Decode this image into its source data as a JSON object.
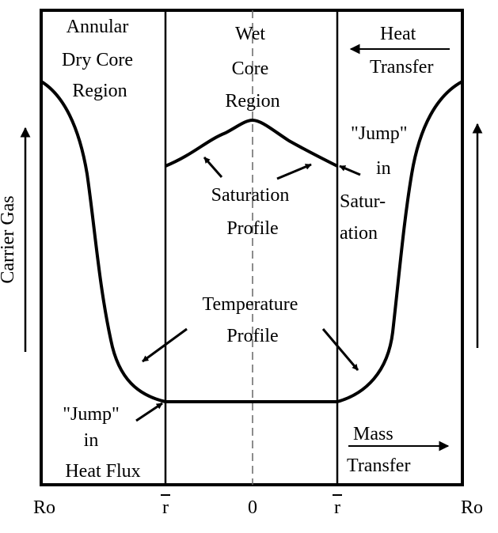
{
  "regions": {
    "annular": [
      "Annular",
      "Dry Core",
      "Region"
    ],
    "wet": [
      "Wet",
      "Core",
      "Region"
    ]
  },
  "heat_transfer": [
    "Heat",
    "Transfer"
  ],
  "mass_transfer": [
    "Mass",
    "Transfer"
  ],
  "carrier_gas": "Carrier Gas",
  "saturation_profile": [
    "Saturation",
    "Profile"
  ],
  "temperature_profile": [
    "Temperature",
    "Profile"
  ],
  "jump_saturation": [
    "\"Jump\"",
    "in",
    "Satur-",
    "ation"
  ],
  "jump_heat_flux": [
    "\"Jump\"",
    "in",
    "Heat Flux"
  ],
  "axis_labels": {
    "left": "Ro",
    "rbar_left": "r",
    "center": "0",
    "rbar_right": "r",
    "right": "Ro"
  }
}
